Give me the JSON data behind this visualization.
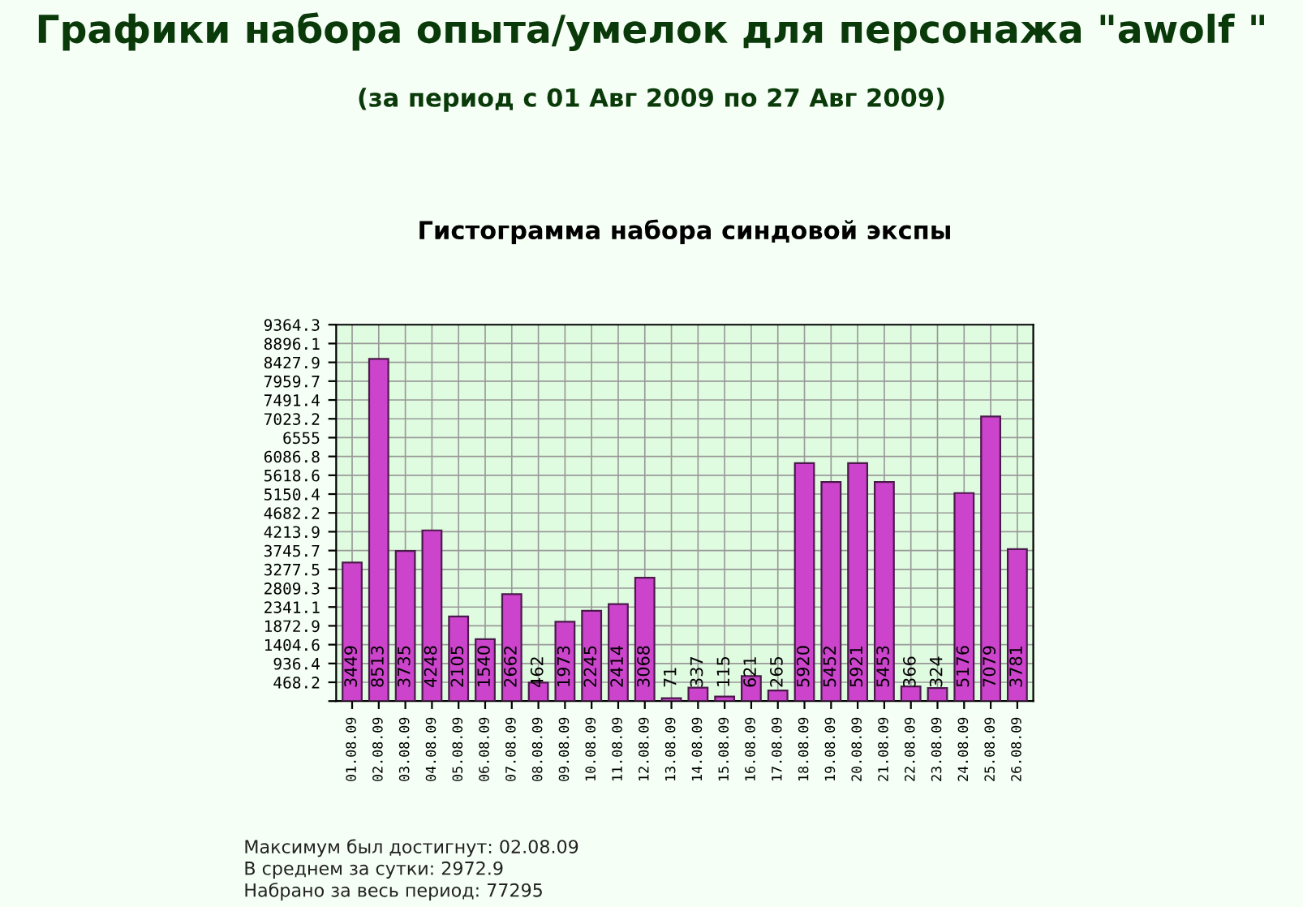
{
  "chart_data": {
    "type": "bar",
    "title": "Гистограмма набора синдовой экспы",
    "subtitle": "Графики набора опыта/умелок для персонажа \"awolf \"",
    "annotations": [
      "(за период с 01 Авг 2009 по 27 Авг 2009)",
      "Максимум был достигнут: 02.08.09",
      "В среднем за сутки: 2972.9",
      "Набрано за весь период: 77295"
    ],
    "categories": [
      "01.08.09",
      "02.08.09",
      "03.08.09",
      "04.08.09",
      "05.08.09",
      "06.08.09",
      "07.08.09",
      "08.08.09",
      "09.08.09",
      "10.08.09",
      "11.08.09",
      "12.08.09",
      "13.08.09",
      "14.08.09",
      "15.08.09",
      "16.08.09",
      "17.08.09",
      "18.08.09",
      "19.08.09",
      "20.08.09",
      "21.08.09",
      "22.08.09",
      "23.08.09",
      "24.08.09",
      "25.08.09",
      "26.08.09"
    ],
    "values": [
      3449,
      8513,
      3735,
      4248,
      2105,
      1540,
      2662,
      462,
      1973,
      2245,
      2414,
      3068,
      71,
      337,
      115,
      621,
      265,
      5920,
      5452,
      5921,
      5453,
      366,
      324,
      5176,
      7079,
      3781
    ],
    "color": "#cc44cc",
    "data_labels": true,
    "ylim": [
      0,
      9364.3
    ],
    "yticks": [
      {
        "value": 0,
        "label": null
      },
      468.2,
      936.4,
      1404.6,
      1872.9,
      2341.1,
      2809.3,
      3277.5,
      3745.7,
      4213.9,
      4682.2,
      5150.4,
      5618.6,
      6086.8,
      6555,
      7023.2,
      7491.4,
      7959.7,
      8427.9,
      8896.1,
      9364.3
    ],
    "grid": true
  }
}
